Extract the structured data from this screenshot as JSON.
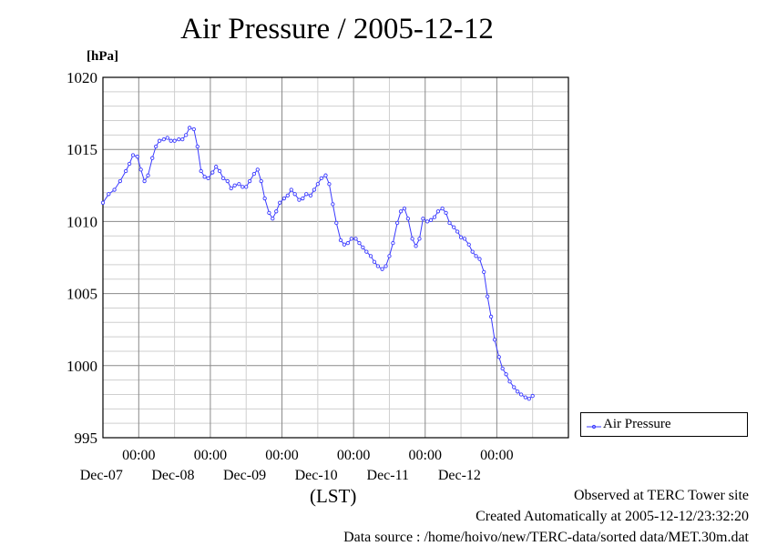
{
  "header": {
    "unit": "[hPa]",
    "lst": "(LST)"
  },
  "legend": {
    "label": "Air Pressure",
    "color": "#3a3aff"
  },
  "footer": {
    "site": "Observed at TERC Tower site",
    "created": "Created Automatically at 2005-12-12/23:32:20",
    "source": "Data source : /home/hoivo/new/TERC-data/sorted  data/MET.30m.dat"
  },
  "chart_data": {
    "type": "line",
    "title": "Air Pressure / 2005-12-12",
    "ylabel": "[hPa]",
    "xlabel": "(LST)",
    "ylim": [
      995,
      1020
    ],
    "y_ticks": [
      "995",
      "1000",
      "1005",
      "1010",
      "1015",
      "1020"
    ],
    "x_range_days": [
      "Dec-06 12:00",
      "Dec-12 24:00"
    ],
    "x_tick_time_label": "00:00",
    "x_tick_dates": [
      "Dec-07",
      "Dec-08",
      "Dec-09",
      "Dec-10",
      "Dec-11",
      "Dec-12"
    ],
    "grid": true,
    "legend_position": "right",
    "series": [
      {
        "name": "Air Pressure",
        "color": "#3a3aff",
        "x_day": [
          0,
          0.08,
          0.16,
          0.24,
          0.32,
          0.37,
          0.42,
          0.48,
          0.53,
          0.58,
          0.63,
          0.69,
          0.74,
          0.79,
          0.85,
          0.9,
          0.95,
          1.0,
          1.06,
          1.11,
          1.16,
          1.21,
          1.27,
          1.32,
          1.37,
          1.42,
          1.47,
          1.53,
          1.58,
          1.63,
          1.68,
          1.74,
          1.79,
          1.84,
          1.9,
          1.95,
          2.0,
          2.05,
          2.11,
          2.16,
          2.21,
          2.26,
          2.32,
          2.37,
          2.42,
          2.47,
          2.53,
          2.58,
          2.63,
          2.68,
          2.74,
          2.79,
          2.84,
          2.9,
          2.95,
          3.0,
          3.05,
          3.11,
          3.16,
          3.21,
          3.26,
          3.32,
          3.37,
          3.42,
          3.47,
          3.53,
          3.58,
          3.63,
          3.68,
          3.74,
          3.79,
          3.84,
          3.9,
          3.95,
          4.0,
          4.05,
          4.11,
          4.16,
          4.21,
          4.26,
          4.32,
          4.37,
          4.42,
          4.47,
          4.53,
          4.58,
          4.63,
          4.68,
          4.74,
          4.79,
          4.84,
          4.9,
          4.95,
          5.0,
          5.05,
          5.11,
          5.16,
          5.21,
          5.26,
          5.32,
          5.37,
          5.42,
          5.47,
          5.53,
          5.58,
          5.63,
          5.68,
          5.74,
          5.79,
          5.84,
          5.9,
          5.95,
          6.0
        ],
        "values": [
          1011.3,
          1011.9,
          1012.2,
          1012.8,
          1013.5,
          1014.0,
          1014.6,
          1014.5,
          1013.6,
          1012.8,
          1013.2,
          1014.4,
          1015.2,
          1015.6,
          1015.7,
          1015.8,
          1015.6,
          1015.6,
          1015.7,
          1015.7,
          1016.0,
          1016.5,
          1016.4,
          1015.2,
          1013.5,
          1013.1,
          1013.0,
          1013.4,
          1013.8,
          1013.5,
          1013.0,
          1012.8,
          1012.3,
          1012.5,
          1012.6,
          1012.4,
          1012.4,
          1012.8,
          1013.3,
          1013.6,
          1012.8,
          1011.6,
          1010.6,
          1010.2,
          1010.7,
          1011.3,
          1011.6,
          1011.8,
          1012.2,
          1011.9,
          1011.5,
          1011.6,
          1011.9,
          1011.8,
          1012.2,
          1012.6,
          1013.0,
          1013.2,
          1012.6,
          1011.2,
          1009.9,
          1008.7,
          1008.4,
          1008.5,
          1008.8,
          1008.8,
          1008.5,
          1008.2,
          1007.9,
          1007.6,
          1007.2,
          1006.9,
          1006.7,
          1006.9,
          1007.6,
          1008.5,
          1009.9,
          1010.7,
          1010.9,
          1010.2,
          1008.8,
          1008.3,
          1008.8,
          1010.2,
          1010.0,
          1010.1,
          1010.3,
          1010.7,
          1010.9,
          1010.6,
          1009.9,
          1009.6,
          1009.3,
          1008.9,
          1008.8,
          1008.4,
          1007.9,
          1007.6,
          1007.4,
          1006.5,
          1004.8,
          1003.4,
          1001.8,
          1000.6,
          999.8,
          999.4,
          998.9,
          998.5,
          998.2,
          998.0,
          997.8,
          997.7,
          997.9
        ]
      }
    ]
  }
}
